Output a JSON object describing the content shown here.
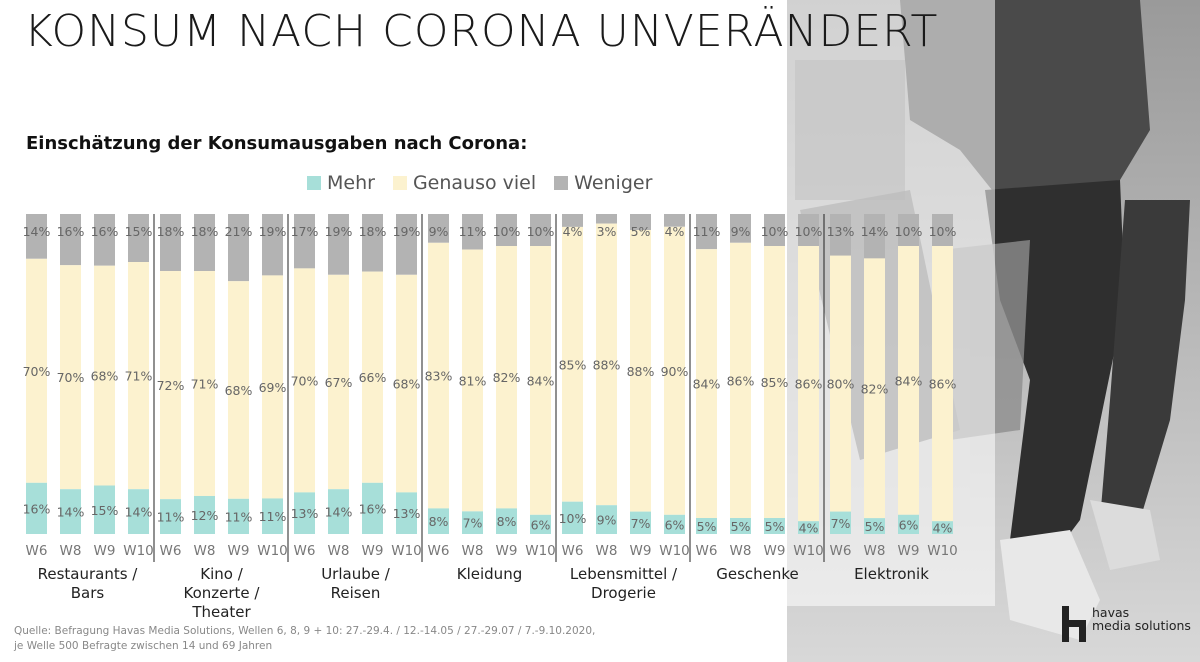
{
  "page": {
    "title": "KONSUM NACH CORONA UNVERÄNDERT",
    "source_line1": "Quelle: Befragung Havas Media Solutions, Wellen 6, 8, 9 + 10: 27.-29.4. / 12.-14.05 / 27.-29.07 / 7.-9.10.2020,",
    "source_line2": "je Welle 500 Befragte zwischen 14 und 69 Jahren",
    "brand_line1": "havas",
    "brand_line2": "media solutions"
  },
  "colors": {
    "mehr": "#a7dfd9",
    "genauso": "#fcf2cf",
    "weniger": "#b3b3b3"
  },
  "chart_data": {
    "type": "bar",
    "stacked": true,
    "normalized_percent": true,
    "title": "Einschätzung der Konsumausgaben nach Corona:",
    "legend_position": "top",
    "series_names": [
      "Mehr",
      "Genauso viel",
      "Weniger"
    ],
    "waves": [
      "W6",
      "W8",
      "W9",
      "W10"
    ],
    "groups": [
      {
        "label": [
          "Restaurants /",
          "Bars"
        ],
        "mehr": [
          16,
          14,
          15,
          14
        ],
        "genauso": [
          70,
          70,
          68,
          71
        ],
        "weniger": [
          14,
          16,
          16,
          15
        ]
      },
      {
        "label": [
          "Kino /",
          "Konzerte /",
          "Theater"
        ],
        "mehr": [
          11,
          12,
          11,
          11
        ],
        "genauso": [
          72,
          71,
          68,
          69
        ],
        "weniger": [
          18,
          18,
          21,
          19
        ]
      },
      {
        "label": [
          "Urlaube /",
          "Reisen"
        ],
        "mehr": [
          13,
          14,
          16,
          13
        ],
        "genauso": [
          70,
          67,
          66,
          68
        ],
        "weniger": [
          17,
          19,
          18,
          19
        ]
      },
      {
        "label": [
          "Kleidung"
        ],
        "mehr": [
          8,
          7,
          8,
          6
        ],
        "genauso": [
          83,
          81,
          82,
          84
        ],
        "weniger": [
          9,
          11,
          10,
          10
        ]
      },
      {
        "label": [
          "Lebensmittel /",
          "Drogerie"
        ],
        "mehr": [
          10,
          9,
          7,
          6
        ],
        "genauso": [
          85,
          88,
          88,
          90
        ],
        "weniger": [
          4,
          3,
          5,
          4
        ]
      },
      {
        "label": [
          "Geschenke"
        ],
        "mehr": [
          5,
          5,
          5,
          4
        ],
        "genauso": [
          84,
          86,
          85,
          86
        ],
        "weniger": [
          11,
          9,
          10,
          10
        ]
      },
      {
        "label": [
          "Elektronik"
        ],
        "mehr": [
          7,
          5,
          6,
          4
        ],
        "genauso": [
          80,
          82,
          84,
          86
        ],
        "weniger": [
          13,
          14,
          10,
          10
        ]
      }
    ]
  }
}
